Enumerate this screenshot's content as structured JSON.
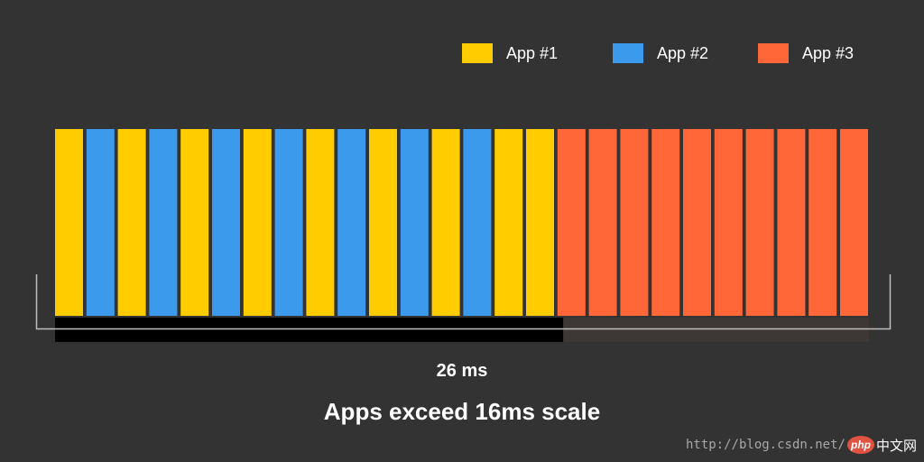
{
  "legend": [
    {
      "label": "App #1",
      "color": "#FFCC00"
    },
    {
      "label": "App #2",
      "color": "#3B9AEB"
    },
    {
      "label": "App #3",
      "color": "#FF6638"
    }
  ],
  "frame_sequence": [
    "App #1",
    "App #2",
    "App #1",
    "App #2",
    "App #1",
    "App #2",
    "App #1",
    "App #2",
    "App #1",
    "App #2",
    "App #1",
    "App #2",
    "App #1",
    "App #2",
    "App #1",
    "App #1",
    "App #3",
    "App #3",
    "App #3",
    "App #3",
    "App #3",
    "App #3",
    "App #3",
    "App #3",
    "App #3",
    "App #3"
  ],
  "timeline": {
    "budget_ms": 16,
    "total_ms": 26
  },
  "caption_duration": "26 ms",
  "caption_main": "Apps exceed 16ms scale",
  "watermark": {
    "url": "http://blog.csdn.net/",
    "logo_text": "php",
    "logo_cn": "中文网"
  }
}
